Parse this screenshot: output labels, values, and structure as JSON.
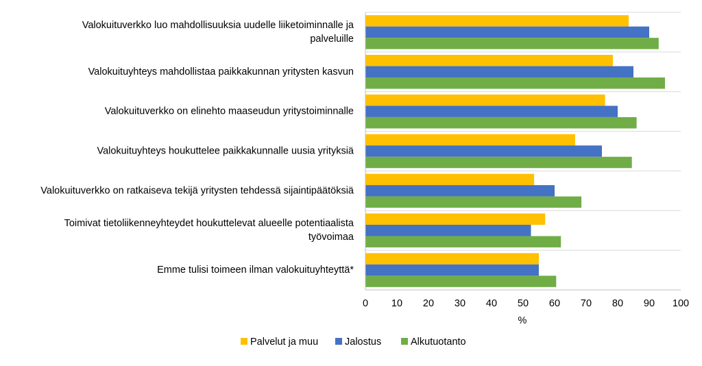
{
  "chart_data": {
    "type": "bar",
    "orientation": "horizontal",
    "categories": [
      [
        "Valokuituverkko luo mahdollisuuksia uudelle liiketoiminnalle ja",
        "palveluille"
      ],
      [
        "Valokuituyhteys mahdollistaa paikkakunnan yritysten kasvun"
      ],
      [
        "Valokuituverkko on elinehto maaseudun yritystoiminnalle"
      ],
      [
        "Valokuituyhteys houkuttelee paikkakunnalle uusia yrityksiä"
      ],
      [
        "Valokuituverkko on ratkaiseva tekijä yritysten tehdessä sijaintipäätöksiä"
      ],
      [
        "Toimivat tietoliikenneyhteydet houkuttelevat alueelle potentiaalista",
        "työvoimaa"
      ],
      [
        "Emme tulisi toimeen ilman valokuituyhteyttä*"
      ]
    ],
    "series": [
      {
        "name": "Palvelut ja muu",
        "color": "#FFC000",
        "values": [
          83.5,
          78.5,
          76,
          66.5,
          53.5,
          57,
          55
        ]
      },
      {
        "name": "Jalostus",
        "color": "#4472C4",
        "values": [
          90,
          85,
          80,
          75,
          60,
          52.5,
          55
        ]
      },
      {
        "name": "Alkutuotanto",
        "color": "#70AD47",
        "values": [
          93,
          95,
          86,
          84.5,
          68.5,
          62,
          60.5
        ]
      }
    ],
    "xlabel": "%",
    "xlim": [
      0,
      100
    ],
    "xticks": [
      "0",
      "10",
      "20",
      "30",
      "40",
      "50",
      "60",
      "70",
      "80",
      "90",
      "100"
    ],
    "grid": "horizontal-separators",
    "legend_position": "bottom"
  }
}
